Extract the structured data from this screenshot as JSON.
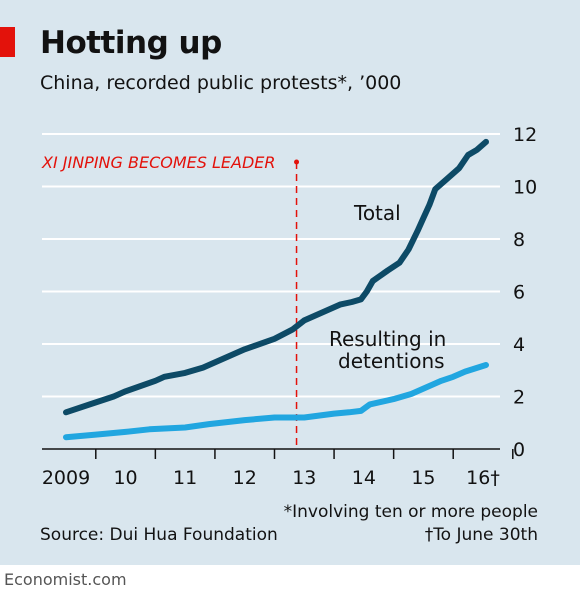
{
  "header": {
    "title": "Hotting up",
    "subtitle": "China, recorded public protests*, ’000"
  },
  "footer": {
    "note_involving": "*Involving ten or more people",
    "note_june": "†To June 30th",
    "source": "Source: Dui Hua Foundation",
    "brand": "Economist.com"
  },
  "colors": {
    "background": "#d9e6ee",
    "total": "#0d4a66",
    "detentions": "#21a6e0",
    "annotation": "#e3120b",
    "brand_red": "#e3120b"
  },
  "chart_data": {
    "type": "line",
    "title": "Hotting up",
    "subtitle": "China, recorded public protests*, ’000",
    "x_tick_labels": [
      "2009",
      "10",
      "11",
      "12",
      "13",
      "14",
      "15",
      "16†"
    ],
    "y_tick_labels": [
      "0",
      "2",
      "4",
      "6",
      "8",
      "10",
      "12"
    ],
    "xlim": [
      2009,
      2016.3
    ],
    "ylim": [
      0,
      12
    ],
    "y_axis_side": "right",
    "grid": "horizontal",
    "annotation": {
      "text": "XI JINPING BECOMES LEADER",
      "x": 2012.87
    },
    "series": [
      {
        "name": "Total",
        "color": "#0d4a66",
        "points": [
          [
            2009.0,
            1.4
          ],
          [
            2009.4,
            1.7
          ],
          [
            2009.8,
            2.0
          ],
          [
            2010.0,
            2.2
          ],
          [
            2010.5,
            2.6
          ],
          [
            2010.65,
            2.75
          ],
          [
            2011.0,
            2.9
          ],
          [
            2011.3,
            3.1
          ],
          [
            2011.5,
            3.3
          ],
          [
            2012.0,
            3.8
          ],
          [
            2012.5,
            4.2
          ],
          [
            2012.8,
            4.55
          ],
          [
            2013.0,
            4.9
          ],
          [
            2013.4,
            5.3
          ],
          [
            2013.6,
            5.5
          ],
          [
            2013.8,
            5.6
          ],
          [
            2013.95,
            5.7
          ],
          [
            2014.05,
            6.0
          ],
          [
            2014.15,
            6.4
          ],
          [
            2014.4,
            6.8
          ],
          [
            2014.6,
            7.1
          ],
          [
            2014.75,
            7.6
          ],
          [
            2014.9,
            8.3
          ],
          [
            2015.0,
            8.8
          ],
          [
            2015.1,
            9.3
          ],
          [
            2015.2,
            9.9
          ],
          [
            2015.4,
            10.3
          ],
          [
            2015.6,
            10.7
          ],
          [
            2015.75,
            11.2
          ],
          [
            2015.9,
            11.4
          ],
          [
            2016.0,
            11.6
          ],
          [
            2016.05,
            11.7
          ]
        ]
      },
      {
        "name": "Resulting in detentions",
        "label_lines": [
          "Resulting in",
          "detentions"
        ],
        "color": "#21a6e0",
        "points": [
          [
            2009.0,
            0.45
          ],
          [
            2009.5,
            0.55
          ],
          [
            2010.0,
            0.65
          ],
          [
            2010.4,
            0.75
          ],
          [
            2011.0,
            0.82
          ],
          [
            2011.4,
            0.95
          ],
          [
            2012.0,
            1.1
          ],
          [
            2012.5,
            1.2
          ],
          [
            2013.0,
            1.2
          ],
          [
            2013.5,
            1.35
          ],
          [
            2013.75,
            1.4
          ],
          [
            2013.95,
            1.45
          ],
          [
            2014.1,
            1.7
          ],
          [
            2014.5,
            1.9
          ],
          [
            2014.8,
            2.1
          ],
          [
            2015.0,
            2.3
          ],
          [
            2015.3,
            2.6
          ],
          [
            2015.5,
            2.75
          ],
          [
            2015.7,
            2.95
          ],
          [
            2016.05,
            3.2
          ]
        ]
      }
    ]
  }
}
